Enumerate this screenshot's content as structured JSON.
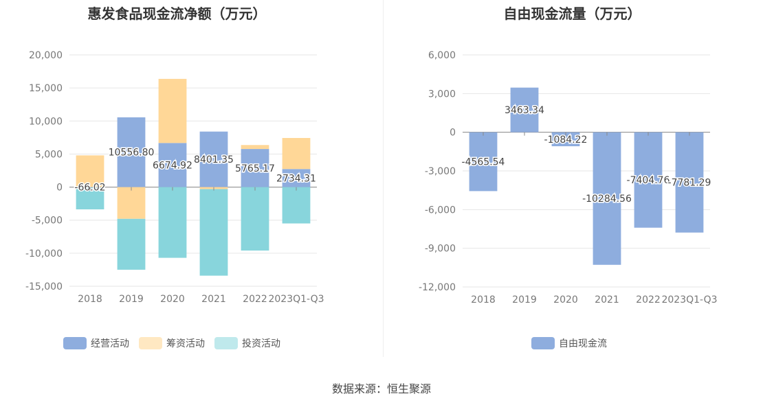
{
  "source_label": "数据来源：恒生聚源",
  "colors": {
    "operating": "#8eadde",
    "financing": "#ffd797",
    "investing": "#88d5dc",
    "fcf": "#8eadde",
    "grid": "#e6e6e6",
    "axis_text": "#777777"
  },
  "chart_data": [
    {
      "type": "bar",
      "stacked": true,
      "title": "惠发食品现金流净额（万元）",
      "categories": [
        "2018",
        "2019",
        "2020",
        "2021",
        "2022",
        "2023Q1-Q3"
      ],
      "yticks": [
        "20,000",
        "15,000",
        "10,000",
        "5,000",
        "0",
        "-5,000",
        "-10,000",
        "-15,000"
      ],
      "ylim": [
        -15000,
        20000
      ],
      "series": [
        {
          "name": "经营活动",
          "values": [
            -66.02,
            10556.8,
            6674.92,
            8401.35,
            5765.17,
            2734.31
          ]
        },
        {
          "name": "筹资活动",
          "values": [
            4800,
            -4800,
            9700,
            -300,
            600,
            4700
          ]
        },
        {
          "name": "投资活动",
          "values": [
            -3300,
            -7700,
            -10700,
            -13100,
            -9600,
            -5500
          ]
        }
      ],
      "data_labels": [
        "-66.02",
        "10556.80",
        "6674.92",
        "8401.35",
        "5765.17",
        "2734.31"
      ],
      "legend": [
        "经营活动",
        "筹资活动",
        "投资活动"
      ],
      "legend_position": "bottom"
    },
    {
      "type": "bar",
      "title": "自由现金流量（万元）",
      "categories": [
        "2018",
        "2019",
        "2020",
        "2021",
        "2022",
        "2023Q1-Q3"
      ],
      "yticks": [
        "6,000",
        "3,000",
        "0",
        "-3,000",
        "-6,000",
        "-9,000",
        "-12,000"
      ],
      "ylim": [
        -12000,
        6000
      ],
      "series": [
        {
          "name": "自由现金流",
          "values": [
            -4565.54,
            3463.34,
            -1084.22,
            -10284.56,
            -7404.76,
            -7781.29
          ]
        }
      ],
      "data_labels": [
        "-4565.54",
        "3463.34",
        "-1084.22",
        "-10284.56",
        "-7404.76",
        "-7781.29"
      ],
      "legend": [
        "自由现金流"
      ],
      "legend_position": "bottom"
    }
  ]
}
